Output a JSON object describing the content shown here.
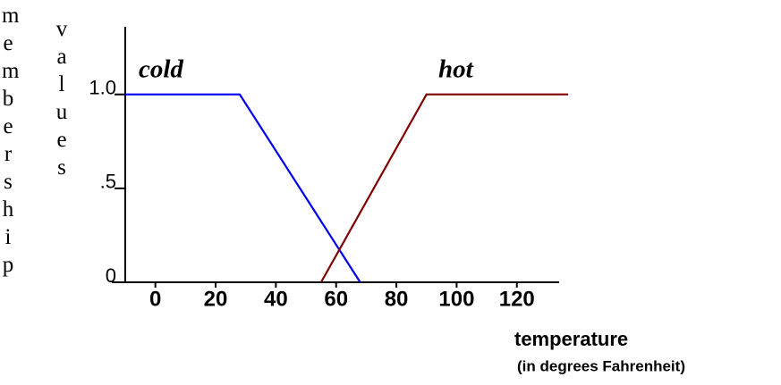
{
  "chart_data": {
    "type": "line",
    "ylabel": [
      "membership",
      "values"
    ],
    "xlabel": "temperature",
    "xlabel_note": "(in degrees Fahrenheit)",
    "annotations": [
      "cold",
      "hot"
    ],
    "series": [
      {
        "name": "cold",
        "color": "#0000ee",
        "x": [
          -10,
          28,
          68
        ],
        "values": [
          1,
          1,
          0
        ]
      },
      {
        "name": "hot",
        "color": "#800000",
        "x": [
          55,
          90,
          137
        ],
        "values": [
          0,
          1,
          1
        ]
      }
    ],
    "xlim": [
      -10,
      137
    ],
    "xticks": [
      0,
      20,
      40,
      60,
      80,
      100,
      120
    ],
    "ylim": [
      0,
      1.36
    ],
    "yticks": [
      0,
      {
        "value": 0.5,
        "label": ".5"
      },
      {
        "value": 1,
        "label": "1.0"
      }
    ]
  }
}
